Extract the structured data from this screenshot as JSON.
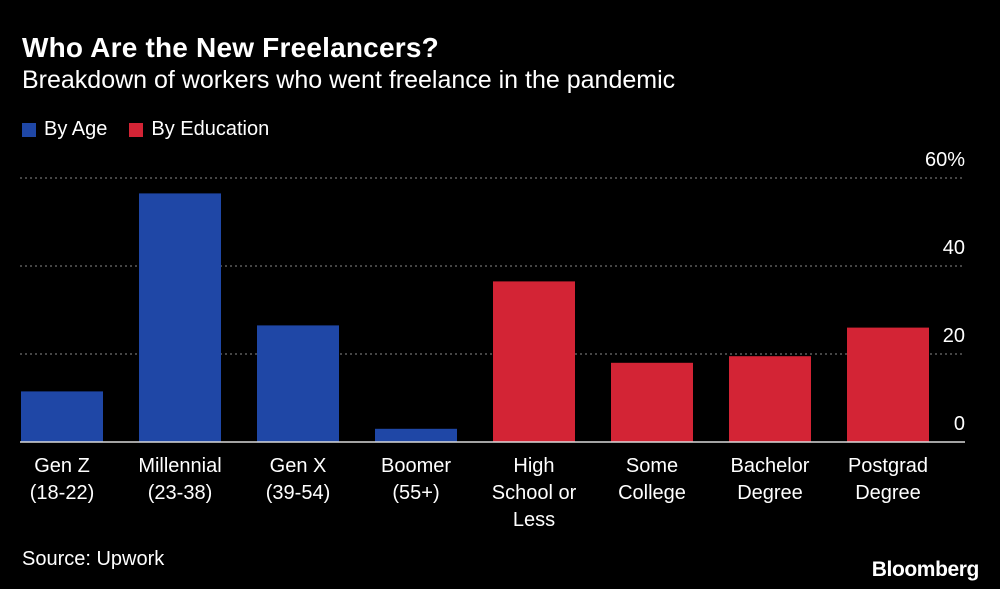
{
  "header": {
    "title": "Who Are the New Freelancers?",
    "subtitle": "Breakdown of workers who went freelance in the pandemic"
  },
  "legend": [
    {
      "label": "By Age",
      "color": "#1f47a6"
    },
    {
      "label": "By Education",
      "color": "#d32435"
    }
  ],
  "footer": {
    "source": "Source: Upwork",
    "logo": "Bloomberg"
  },
  "chart_data": {
    "type": "bar",
    "title": "Who Are the New Freelancers?",
    "subtitle": "Breakdown of workers who went freelance in the pandemic",
    "xlabel": "",
    "ylabel": "",
    "ylim": [
      0,
      60
    ],
    "yticks": [
      {
        "value": 0,
        "label": "0"
      },
      {
        "value": 20,
        "label": "20"
      },
      {
        "value": 40,
        "label": "40"
      },
      {
        "value": 60,
        "label": "60%"
      }
    ],
    "grid": true,
    "legend_position": "top-left",
    "categories": [
      [
        "Gen Z",
        "(18-22)"
      ],
      [
        "Millennial",
        "(23-38)"
      ],
      [
        "Gen X",
        "(39-54)"
      ],
      [
        "Boomer",
        "(55+)"
      ],
      [
        "High",
        "School or",
        "Less"
      ],
      [
        "Some",
        "College"
      ],
      [
        "Bachelor",
        "Degree"
      ],
      [
        "Postgrad",
        "Degree"
      ]
    ],
    "values": [
      11.5,
      56.5,
      26.5,
      3,
      36.5,
      18,
      19.5,
      26
    ],
    "groups": [
      "By Age",
      "By Age",
      "By Age",
      "By Age",
      "By Education",
      "By Education",
      "By Education",
      "By Education"
    ],
    "colors": {
      "By Age": "#1f47a6",
      "By Education": "#d32435"
    }
  }
}
